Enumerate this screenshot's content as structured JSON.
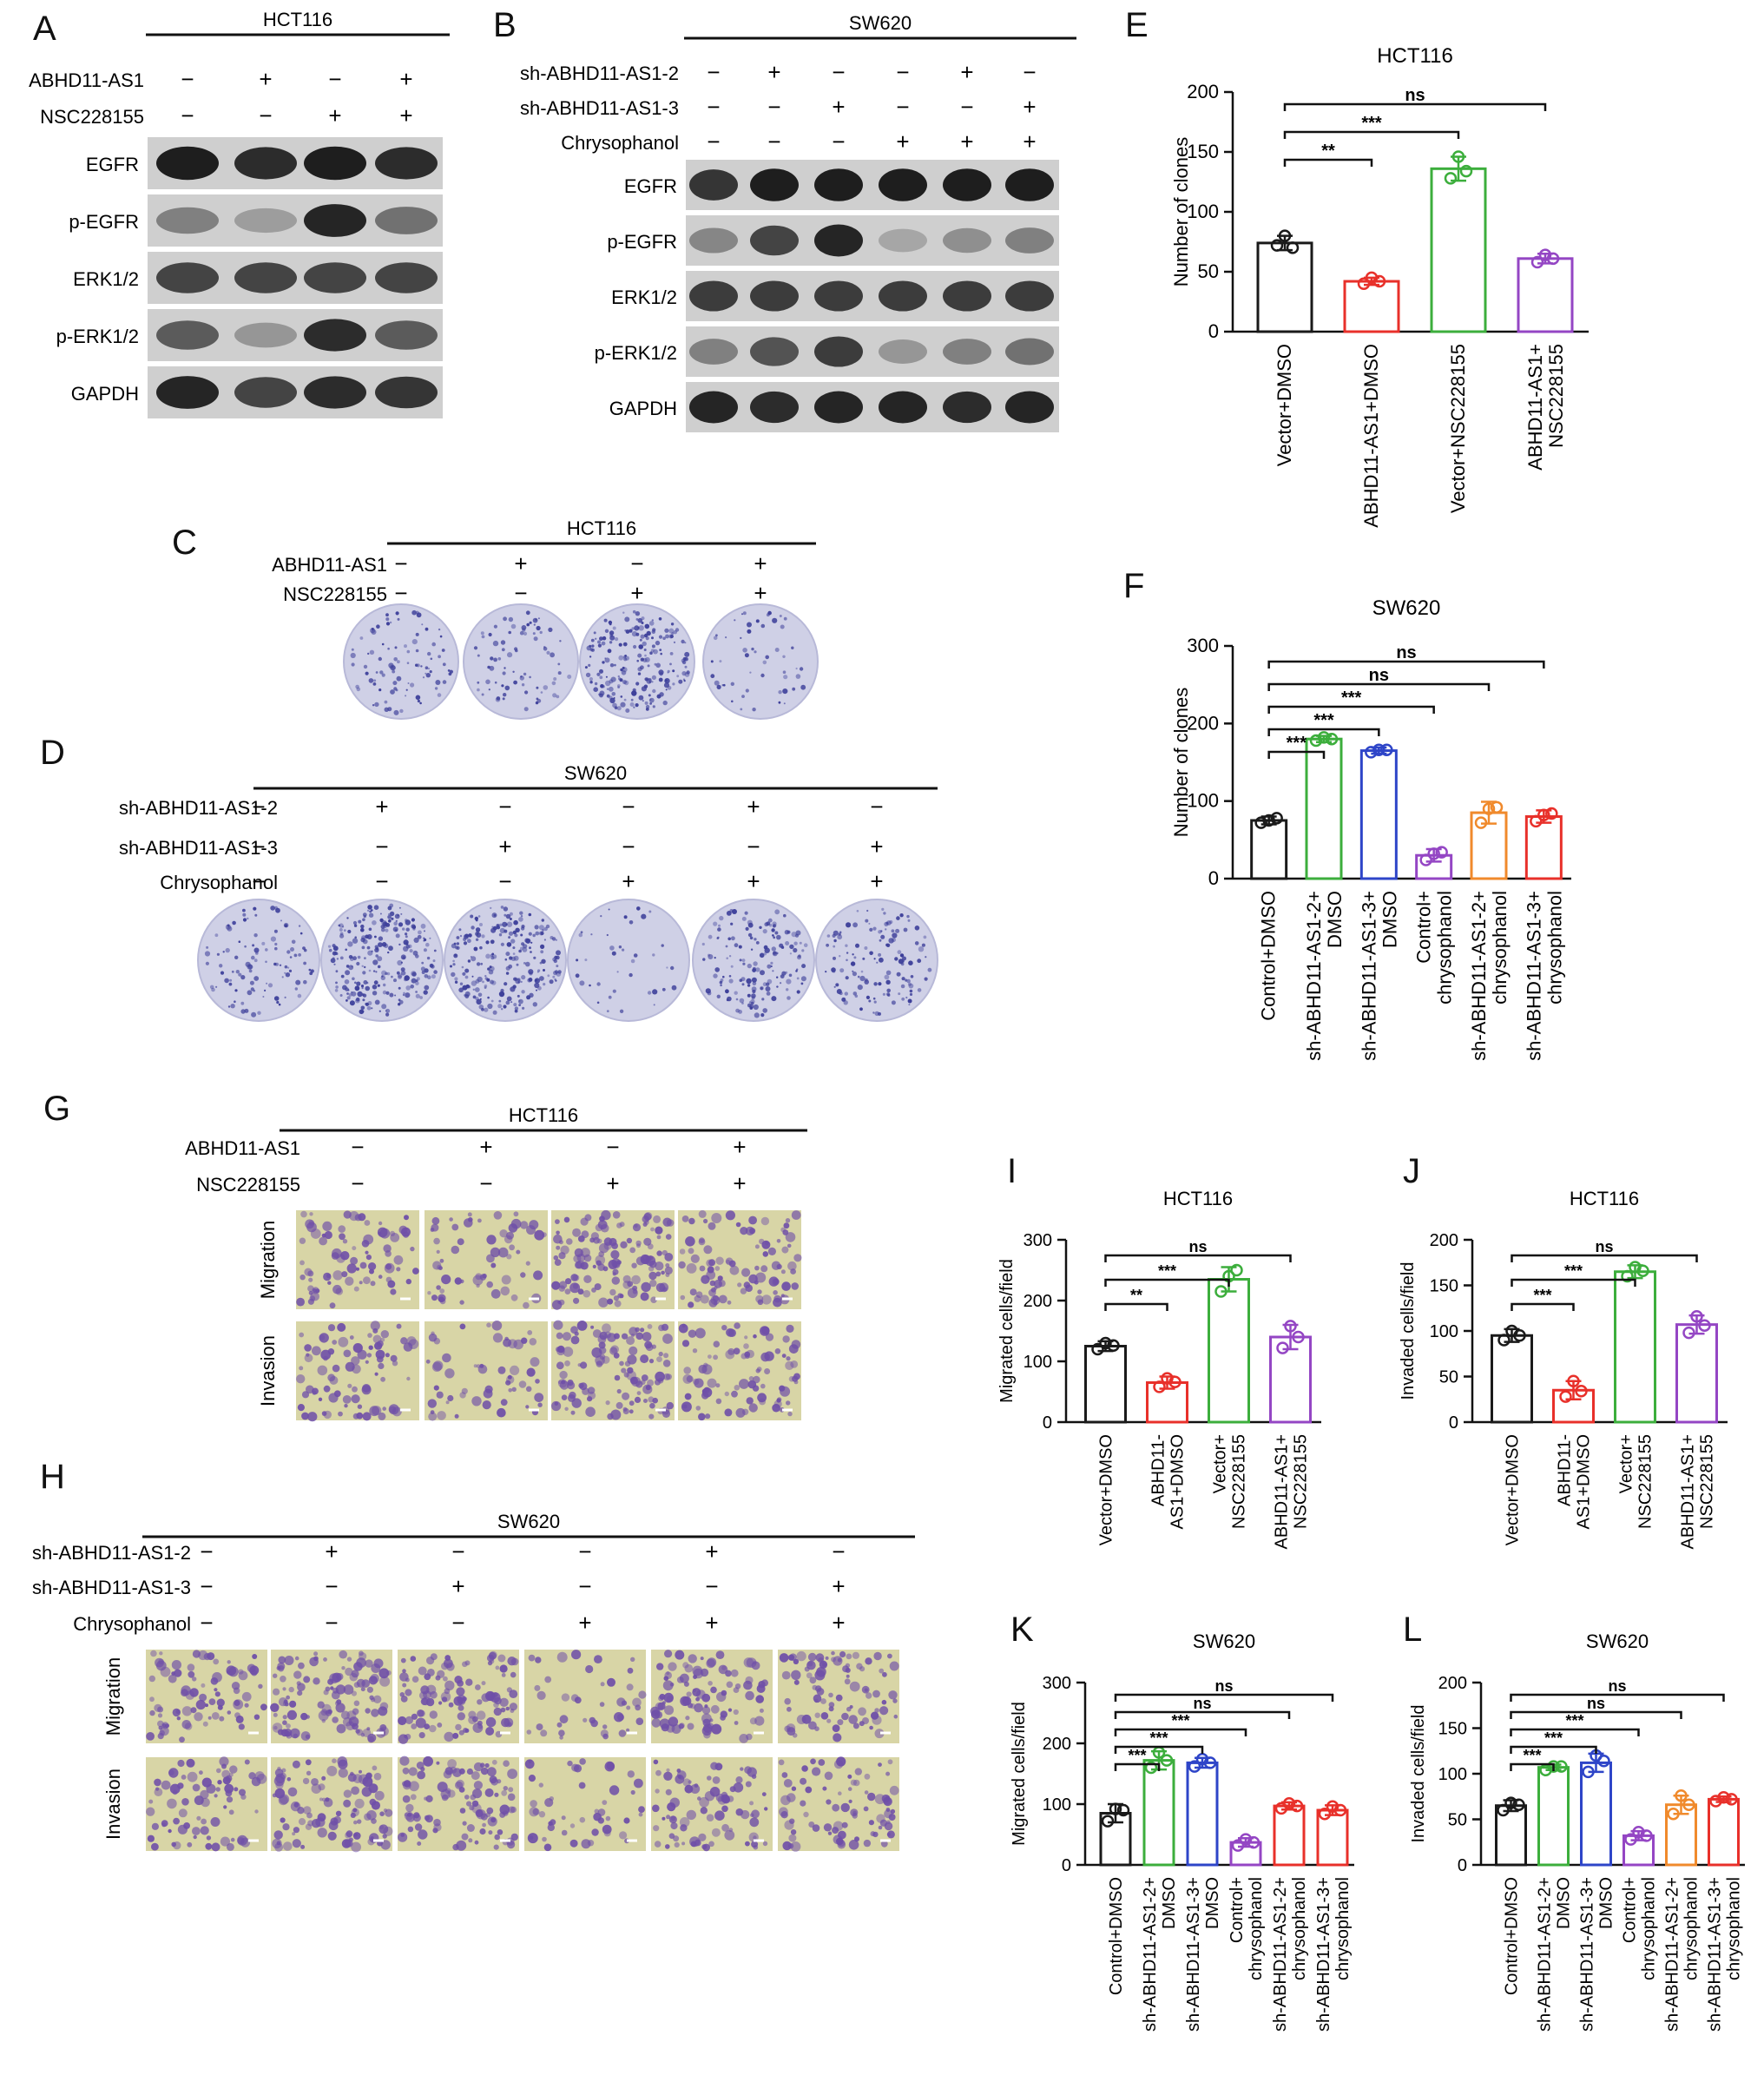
{
  "figure": {
    "panel_letters": [
      "A",
      "B",
      "C",
      "D",
      "E",
      "F",
      "G",
      "H",
      "I",
      "J",
      "K",
      "L"
    ],
    "minus": "−",
    "plus": "+"
  },
  "panel_A": {
    "cell_line": "HCT116",
    "treatments": [
      {
        "label": "ABHD11-AS1",
        "signs": [
          "−",
          "+",
          "−",
          "+"
        ]
      },
      {
        "label": "NSC228155",
        "signs": [
          "−",
          "−",
          "+",
          "+"
        ]
      }
    ],
    "blots": [
      "EGFR",
      "p-EGFR",
      "ERK1/2",
      "p-ERK1/2",
      "GAPDH"
    ]
  },
  "panel_B": {
    "cell_line": "SW620",
    "treatments": [
      {
        "label": "sh-ABHD11-AS1-2",
        "signs": [
          "−",
          "+",
          "−",
          "−",
          "+",
          "−"
        ]
      },
      {
        "label": "sh-ABHD11-AS1-3",
        "signs": [
          "−",
          "−",
          "+",
          "−",
          "−",
          "+"
        ]
      },
      {
        "label": "Chrysophanol",
        "signs": [
          "−",
          "−",
          "−",
          "+",
          "+",
          "+"
        ]
      }
    ],
    "blots": [
      "EGFR",
      "p-EGFR",
      "ERK1/2",
      "p-ERK1/2",
      "GAPDH"
    ]
  },
  "panel_C": {
    "cell_line": "HCT116",
    "treatments": [
      {
        "label": "ABHD11-AS1",
        "signs": [
          "−",
          "+",
          "−",
          "+"
        ]
      },
      {
        "label": "NSC228155",
        "signs": [
          "−",
          "−",
          "+",
          "+"
        ]
      }
    ]
  },
  "panel_D": {
    "cell_line": "SW620",
    "treatments": [
      {
        "label": "sh-ABHD11-AS1-2",
        "signs": [
          "−",
          "+",
          "−",
          "−",
          "+",
          "−"
        ]
      },
      {
        "label": "sh-ABHD11-AS1-3",
        "signs": [
          "−",
          "−",
          "+",
          "−",
          "−",
          "+"
        ]
      },
      {
        "label": "Chrysophanol",
        "signs": [
          "−",
          "−",
          "−",
          "+",
          "+",
          "+"
        ]
      }
    ]
  },
  "panel_G": {
    "cell_line": "HCT116",
    "treatments": [
      {
        "label": "ABHD11-AS1",
        "signs": [
          "−",
          "+",
          "−",
          "+"
        ]
      },
      {
        "label": "NSC228155",
        "signs": [
          "−",
          "−",
          "+",
          "+"
        ]
      }
    ],
    "rows": [
      "Migration",
      "Invasion"
    ]
  },
  "panel_H": {
    "cell_line": "SW620",
    "treatments": [
      {
        "label": "sh-ABHD11-AS1-2",
        "signs": [
          "−",
          "+",
          "−",
          "−",
          "+",
          "−"
        ]
      },
      {
        "label": "sh-ABHD11-AS1-3",
        "signs": [
          "−",
          "−",
          "+",
          "−",
          "−",
          "+"
        ]
      },
      {
        "label": "Chrysophanol",
        "signs": [
          "−",
          "−",
          "−",
          "+",
          "+",
          "+"
        ]
      }
    ],
    "rows": [
      "Migration",
      "Invasion"
    ]
  },
  "colors": {
    "black": "#1a1a1a",
    "red": "#e8302a",
    "green": "#3cae3c",
    "blue": "#2e45c8",
    "purple": "#9446c4",
    "orange": "#f08a2c",
    "blot_bg": "#cfcfcf",
    "blot_band": "#1e1e1e",
    "plate": "#cfd0e6",
    "colony": "#3d3f9a",
    "well_bg": "#d8d5a6",
    "cell": "#6f4fa8"
  },
  "chart_data": [
    {
      "panel": "E",
      "type": "bar",
      "title": "HCT116",
      "ylabel": "Number of clones",
      "ylim": [
        0,
        200
      ],
      "yticks": [
        0,
        50,
        100,
        150,
        200
      ],
      "categories": [
        "Vector+DMSO",
        "ABHD11-AS1+DMSO",
        "Vector+NSC228155",
        "ABHD11-AS1+\nNSC228155"
      ],
      "values": [
        74,
        42,
        136,
        61
      ],
      "errors": [
        6,
        3,
        10,
        4
      ],
      "points": [
        [
          72,
          80,
          70
        ],
        [
          40,
          45,
          42
        ],
        [
          128,
          146,
          134
        ],
        [
          58,
          64,
          61
        ]
      ],
      "colors": [
        "black",
        "red",
        "green",
        "purple"
      ],
      "comparisons": [
        {
          "from": 0,
          "to": 3,
          "label": "ns"
        },
        {
          "from": 0,
          "to": 2,
          "label": "***"
        },
        {
          "from": 0,
          "to": 1,
          "label": "**"
        }
      ]
    },
    {
      "panel": "F",
      "type": "bar",
      "title": "SW620",
      "ylabel": "Number of clones",
      "ylim": [
        0,
        300
      ],
      "yticks": [
        0,
        100,
        200,
        300
      ],
      "categories": [
        "Control+DMSO",
        "sh-ABHD11-AS1-2+\nDMSO",
        "sh-ABHD11-AS1-3+\nDMSO",
        "Control+\nchrysophanol",
        "sh-ABHD11-AS1-2+\nchrysophanol",
        "sh-ABHD11-AS1-3+\nchrysophanol"
      ],
      "values": [
        75,
        180,
        165,
        30,
        85,
        80
      ],
      "errors": [
        5,
        4,
        4,
        8,
        14,
        8
      ],
      "points": [
        [
          72,
          75,
          78
        ],
        [
          178,
          182,
          180
        ],
        [
          163,
          166,
          166
        ],
        [
          24,
          32,
          34
        ],
        [
          72,
          90,
          92
        ],
        [
          74,
          82,
          84
        ]
      ],
      "colors": [
        "black",
        "green",
        "blue",
        "purple",
        "orange",
        "red"
      ],
      "comparisons": [
        {
          "from": 0,
          "to": 5,
          "label": "ns"
        },
        {
          "from": 0,
          "to": 4,
          "label": "ns"
        },
        {
          "from": 0,
          "to": 3,
          "label": "***"
        },
        {
          "from": 0,
          "to": 2,
          "label": "***"
        },
        {
          "from": 0,
          "to": 1,
          "label": "***"
        }
      ]
    },
    {
      "panel": "I",
      "type": "bar",
      "title": "HCT116",
      "ylabel": "Migrated cells/field",
      "ylim": [
        0,
        300
      ],
      "yticks": [
        0,
        100,
        200,
        300
      ],
      "categories": [
        "Vector+DMSO",
        "ABHD11-\nAS1+DMSO",
        "Vector+\nNSC228155",
        "ABHD11-AS1+\nNSC228155"
      ],
      "values": [
        125,
        65,
        235,
        140
      ],
      "errors": [
        8,
        10,
        20,
        20
      ],
      "points": [
        [
          120,
          130,
          126
        ],
        [
          58,
          72,
          66
        ],
        [
          215,
          240,
          250
        ],
        [
          122,
          158,
          140
        ]
      ],
      "colors": [
        "black",
        "red",
        "green",
        "purple"
      ],
      "comparisons": [
        {
          "from": 0,
          "to": 3,
          "label": "ns"
        },
        {
          "from": 0,
          "to": 2,
          "label": "***"
        },
        {
          "from": 0,
          "to": 1,
          "label": "**"
        }
      ]
    },
    {
      "panel": "J",
      "type": "bar",
      "title": "HCT116",
      "ylabel": "Invaded cells/field",
      "ylim": [
        0,
        200
      ],
      "yticks": [
        0,
        50,
        100,
        150,
        200
      ],
      "categories": [
        "Vector+DMSO",
        "ABHD11-\nAS1+DMSO",
        "Vector+\nNSC228155",
        "ABHD11-AS1+\nNSC228155"
      ],
      "values": [
        95,
        35,
        165,
        107
      ],
      "errors": [
        7,
        10,
        7,
        10
      ],
      "points": [
        [
          90,
          100,
          95
        ],
        [
          28,
          45,
          34
        ],
        [
          160,
          170,
          166
        ],
        [
          98,
          116,
          106
        ]
      ],
      "colors": [
        "black",
        "red",
        "green",
        "purple"
      ],
      "comparisons": [
        {
          "from": 0,
          "to": 3,
          "label": "ns"
        },
        {
          "from": 0,
          "to": 2,
          "label": "***"
        },
        {
          "from": 0,
          "to": 1,
          "label": "***"
        }
      ]
    },
    {
      "panel": "K",
      "type": "bar",
      "title": "SW620",
      "ylabel": "Migrated cells/field",
      "ylim": [
        0,
        300
      ],
      "yticks": [
        0,
        100,
        200,
        300
      ],
      "categories": [
        "Control+DMSO",
        "sh-ABHD11-AS1-2+\nDMSO",
        "sh-ABHD11-AS1-3+\nDMSO",
        "Control+\nchrysophanol",
        "sh-ABHD11-AS1-2+\nchrysophanol",
        "sh-ABHD11-AS1-3+\nchrysophanol"
      ],
      "values": [
        85,
        172,
        168,
        37,
        97,
        90
      ],
      "errors": [
        15,
        15,
        8,
        7,
        6,
        8
      ],
      "points": [
        [
          72,
          92,
          90
        ],
        [
          160,
          185,
          172
        ],
        [
          162,
          174,
          168
        ],
        [
          32,
          42,
          37
        ],
        [
          93,
          101,
          97
        ],
        [
          84,
          96,
          90
        ]
      ],
      "colors": [
        "black",
        "green",
        "blue",
        "purple",
        "red",
        "red"
      ],
      "comparisons": [
        {
          "from": 0,
          "to": 5,
          "label": "ns"
        },
        {
          "from": 0,
          "to": 4,
          "label": "ns"
        },
        {
          "from": 0,
          "to": 3,
          "label": "***"
        },
        {
          "from": 0,
          "to": 2,
          "label": "***"
        },
        {
          "from": 0,
          "to": 1,
          "label": "***"
        }
      ]
    },
    {
      "panel": "L",
      "type": "bar",
      "title": "SW620",
      "ylabel": "Invaded cells/field",
      "ylim": [
        0,
        200
      ],
      "yticks": [
        0,
        50,
        100,
        150,
        200
      ],
      "categories": [
        "Control+DMSO",
        "sh-ABHD11-AS1-2+\nDMSO",
        "sh-ABHD11-AS1-3+\nDMSO",
        "Control+\nchrysophanol",
        "sh-ABHD11-AS1-2+\nchrysophanol",
        "sh-ABHD11-AS1-3+\nchrysophanol"
      ],
      "values": [
        65,
        107,
        112,
        32,
        66,
        72
      ],
      "errors": [
        6,
        3,
        10,
        5,
        10,
        3
      ],
      "points": [
        [
          60,
          68,
          66
        ],
        [
          104,
          108,
          108
        ],
        [
          102,
          120,
          114
        ],
        [
          28,
          36,
          32
        ],
        [
          56,
          76,
          66
        ],
        [
          70,
          74,
          72
        ]
      ],
      "colors": [
        "black",
        "green",
        "blue",
        "purple",
        "orange",
        "red"
      ],
      "comparisons": [
        {
          "from": 0,
          "to": 5,
          "label": "ns"
        },
        {
          "from": 0,
          "to": 4,
          "label": "ns"
        },
        {
          "from": 0,
          "to": 3,
          "label": "***"
        },
        {
          "from": 0,
          "to": 2,
          "label": "***"
        },
        {
          "from": 0,
          "to": 1,
          "label": "***"
        }
      ]
    }
  ]
}
